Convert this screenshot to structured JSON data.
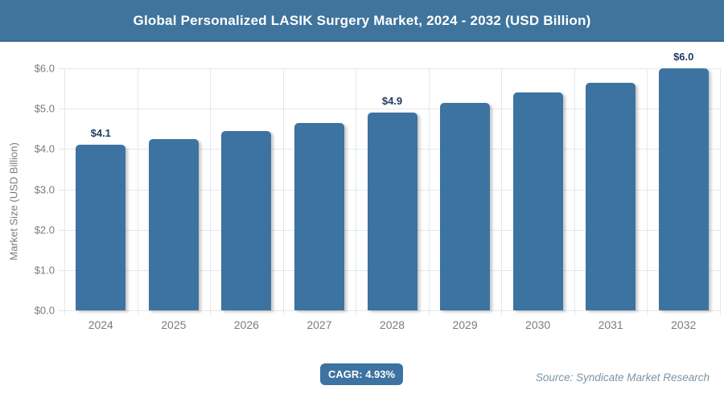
{
  "chart_data": {
    "type": "bar",
    "title": "Global Personalized LASIK Surgery Market, 2024 - 2032 (USD Billion)",
    "ylabel": "Market Size (USD Billion)",
    "xlabel": "",
    "categories": [
      "2024",
      "2025",
      "2026",
      "2027",
      "2028",
      "2029",
      "2030",
      "2031",
      "2032"
    ],
    "values": [
      4.1,
      4.25,
      4.45,
      4.65,
      4.9,
      5.15,
      5.4,
      5.65,
      6.0
    ],
    "bar_labels": [
      "$4.1",
      "",
      "",
      "",
      "$4.9",
      "",
      "",
      "",
      "$6.0"
    ],
    "ylim": [
      0,
      6
    ],
    "ytick_values": [
      0,
      1,
      2,
      3,
      4,
      5,
      6
    ],
    "ytick_labels": [
      "$0.0",
      "$1.0",
      "$2.0",
      "$3.0",
      "$4.0",
      "$5.0",
      "$6.0"
    ],
    "grid": true,
    "legend": false
  },
  "footer": {
    "cagr_label": "CAGR: 4.93%",
    "source": "Source: Syndicate Market Research"
  },
  "colors": {
    "banner_bg": "#3F749D",
    "title_text": "#FFFFFF",
    "bar_fill": "#3D73A0",
    "data_label": "#1F3A5F",
    "grid_line": "#E4E7EA",
    "axis_text": "#7C7C7C",
    "source_text": "#7E93A3",
    "badge_bg": "#3D73A0",
    "badge_text": "#FFFFFF"
  }
}
